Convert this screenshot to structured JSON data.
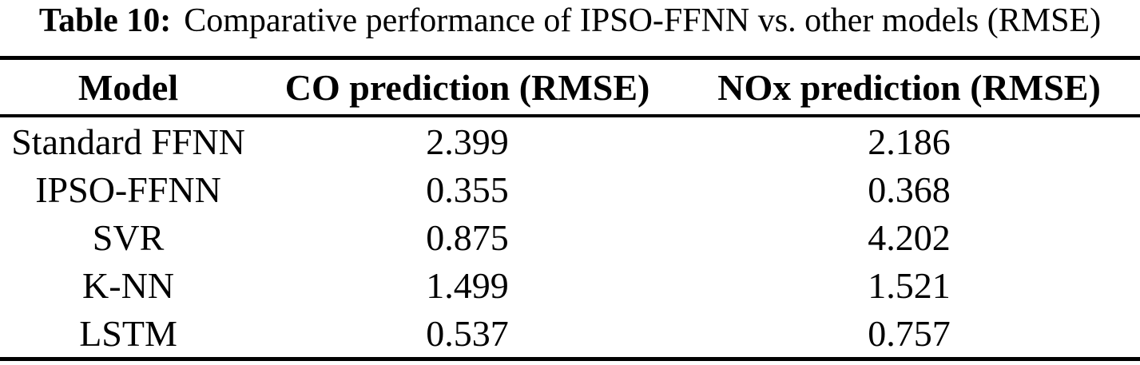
{
  "caption": {
    "label": "Table 10:",
    "text": "Comparative performance of IPSO-FFNN vs. other models (RMSE)"
  },
  "table": {
    "columns": [
      "Model",
      "CO prediction (RMSE)",
      "NOx prediction (RMSE)"
    ],
    "rows": [
      [
        "Standard FFNN",
        "2.399",
        "2.186"
      ],
      [
        "IPSO-FFNN",
        "0.355",
        "0.368"
      ],
      [
        "SVR",
        "0.875",
        "4.202"
      ],
      [
        "K-NN",
        "1.499",
        "1.521"
      ],
      [
        "LSTM",
        "0.537",
        "0.757"
      ]
    ]
  },
  "colors": {
    "text": "#000000",
    "background": "#ffffff",
    "rule": "#000000"
  },
  "chart_data": {
    "type": "table",
    "title": "Table 10: Comparative performance of IPSO-FFNN vs. other models (RMSE)",
    "columns": [
      "Model",
      "CO prediction (RMSE)",
      "NOx prediction (RMSE)"
    ],
    "rows": [
      {
        "model": "Standard FFNN",
        "co_rmse": 2.399,
        "nox_rmse": 2.186
      },
      {
        "model": "IPSO-FFNN",
        "co_rmse": 0.355,
        "nox_rmse": 0.368
      },
      {
        "model": "SVR",
        "co_rmse": 0.875,
        "nox_rmse": 4.202
      },
      {
        "model": "K-NN",
        "co_rmse": 1.499,
        "nox_rmse": 1.521
      },
      {
        "model": "LSTM",
        "co_rmse": 0.537,
        "nox_rmse": 0.757
      }
    ]
  }
}
